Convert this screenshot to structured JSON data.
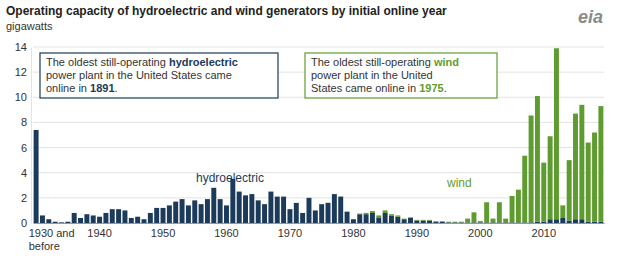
{
  "chart_data": {
    "type": "bar",
    "title": "Operating capacity of hydroelectric and wind generators by initial online year",
    "subtitle": "gigawatts",
    "logo": "eia",
    "stacked": true,
    "grid": true,
    "ylim": [
      0,
      14
    ],
    "yticks": [
      0,
      2,
      4,
      6,
      8,
      10,
      12,
      14
    ],
    "categories": [
      "1930 and before",
      null,
      null,
      null,
      null,
      null,
      null,
      null,
      null,
      null,
      "1940",
      null,
      null,
      null,
      null,
      null,
      null,
      null,
      null,
      null,
      "1950",
      null,
      null,
      null,
      null,
      null,
      null,
      null,
      null,
      null,
      "1960",
      null,
      null,
      null,
      null,
      null,
      null,
      null,
      null,
      null,
      "1970",
      null,
      null,
      null,
      null,
      null,
      null,
      null,
      null,
      null,
      "1980",
      null,
      null,
      null,
      null,
      null,
      null,
      null,
      null,
      null,
      "1990",
      null,
      null,
      null,
      null,
      null,
      null,
      null,
      null,
      null,
      "2000",
      null,
      null,
      null,
      null,
      null,
      null,
      null,
      null,
      null,
      "2010",
      null,
      null,
      null,
      null,
      null,
      null,
      null,
      null,
      null
    ],
    "series": [
      {
        "name": "hydroelectric",
        "color": "#1c3a5a",
        "values": [
          7.4,
          0.6,
          0.3,
          0.1,
          0.05,
          0.1,
          0.8,
          0.4,
          0.7,
          0.6,
          0.5,
          0.8,
          1.1,
          1.1,
          1.0,
          0.4,
          0.5,
          0.3,
          0.8,
          1.2,
          1.2,
          1.4,
          1.7,
          1.9,
          1.4,
          1.8,
          1.5,
          1.9,
          2.8,
          1.9,
          1.4,
          3.5,
          2.5,
          2.2,
          2.3,
          1.8,
          1.5,
          2.5,
          2.1,
          2.1,
          1.1,
          1.6,
          0.8,
          2.0,
          1.0,
          1.5,
          1.6,
          2.3,
          2.1,
          0.9,
          0.3,
          0.7,
          0.7,
          0.8,
          0.4,
          0.8,
          0.6,
          0.5,
          0.3,
          0.4,
          0.2,
          0.2,
          0.2,
          0.1,
          0.1,
          0.05,
          0.05,
          0.05,
          0.05,
          0.05,
          0.05,
          0.05,
          0.05,
          0.05,
          0.05,
          0.05,
          0.05,
          0.05,
          0.05,
          0.1,
          0.1,
          0.3,
          0.3,
          0.4,
          0.2,
          0.3,
          0.3,
          0.1,
          0.1,
          0.1
        ]
      },
      {
        "name": "wind",
        "color": "#5f9c2f",
        "values": [
          null,
          null,
          null,
          null,
          null,
          null,
          null,
          null,
          null,
          null,
          null,
          null,
          null,
          null,
          null,
          null,
          null,
          null,
          null,
          null,
          null,
          null,
          null,
          null,
          null,
          null,
          null,
          null,
          null,
          null,
          null,
          null,
          null,
          null,
          null,
          null,
          null,
          null,
          null,
          null,
          null,
          null,
          null,
          null,
          null,
          0.01,
          0.01,
          0.01,
          0.01,
          0.01,
          0.01,
          0.05,
          0.1,
          0.15,
          0.2,
          0.2,
          0.1,
          0.1,
          0.05,
          0.05,
          0.05,
          0.05,
          0.05,
          0.05,
          0.05,
          0.05,
          0.05,
          0.05,
          0.3,
          0.8,
          0.1,
          1.6,
          0.3,
          1.6,
          0.3,
          2.1,
          2.6,
          5.3,
          8.5,
          10.0,
          4.7,
          6.6,
          13.6,
          1.0,
          4.8,
          8.4,
          9.1,
          6.3,
          7.1,
          9.2
        ]
      }
    ],
    "annotations": [
      {
        "lines": [
          [
            {
              "text": "The oldest still-operating ",
              "bold": false
            },
            {
              "text": "hydroelectric",
              "bold": true
            }
          ],
          [
            {
              "text": "power plant in the United States came",
              "bold": false
            }
          ],
          [
            {
              "text": "online in ",
              "bold": false
            },
            {
              "text": "1891",
              "bold": true
            },
            {
              "text": ".",
              "bold": false
            }
          ]
        ]
      },
      {
        "lines": [
          [
            {
              "text": "The oldest still-operating ",
              "bold": false
            },
            {
              "text": "wind",
              "bold": true
            }
          ],
          [
            {
              "text": "power plant in the United",
              "bold": false
            }
          ],
          [
            {
              "text": "States came online in ",
              "bold": false
            },
            {
              "text": "1975",
              "bold": true
            },
            {
              "text": ".",
              "bold": false
            }
          ]
        ]
      }
    ]
  }
}
